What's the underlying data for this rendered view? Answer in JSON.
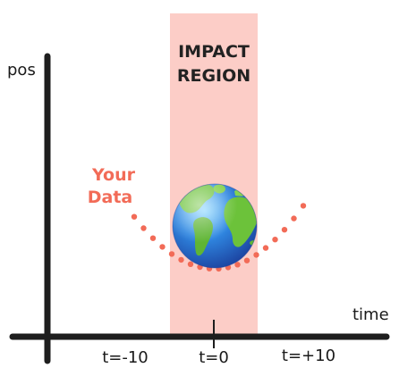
{
  "axes": {
    "y_label": "pos",
    "x_label": "time"
  },
  "impact_region": {
    "line1": "IMPACT",
    "line2": "REGION",
    "fill_color": "#fccdc7"
  },
  "data_label": {
    "line1": "Your",
    "line2": "Data",
    "color": "#f26b57"
  },
  "ticks": [
    {
      "label": "t=-10"
    },
    {
      "label": "t=0"
    },
    {
      "label": "t=+10"
    }
  ],
  "icons": {
    "planet": "earth-globe-icon"
  },
  "colors": {
    "axis": "#1e1e1e",
    "dots": "#f26b57",
    "ocean": "#2f86e0",
    "land": "#6cc23a"
  }
}
